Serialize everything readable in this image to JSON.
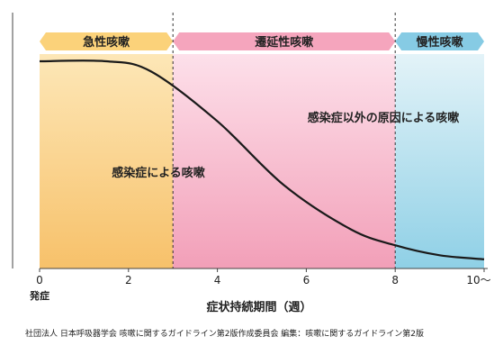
{
  "phases": [
    {
      "label": "急性咳嗽",
      "from_week": 0,
      "to_week": 3,
      "color_top": "#fde7b7",
      "color_bottom": "#f7c16a",
      "arrow_color": "#fbd27a"
    },
    {
      "label": "遷延性咳嗽",
      "from_week": 3,
      "to_week": 8,
      "color_top": "#fde0ea",
      "color_bottom": "#f29fb8",
      "arrow_color": "#f5a5bd"
    },
    {
      "label": "慢性咳嗽",
      "from_week": 8,
      "to_week": 10,
      "color_top": "#e3f3f8",
      "color_bottom": "#8fd0e6",
      "arrow_color": "#86cbe4"
    }
  ],
  "annotations": {
    "infection": "感染症による咳嗽",
    "non_infection": "感染症以外の原因による咳嗽"
  },
  "axis": {
    "ticks": [
      {
        "week": 0,
        "label": "0"
      },
      {
        "week": 2,
        "label": "2"
      },
      {
        "week": 4,
        "label": "4"
      },
      {
        "week": 6,
        "label": "6"
      },
      {
        "week": 8,
        "label": "8"
      },
      {
        "week": 10,
        "label": "10〜"
      }
    ],
    "origin_label": "発症",
    "xlabel": "症状持続期間（週）"
  },
  "curve": {
    "description_points": [
      [
        0,
        0.0
      ],
      [
        1.5,
        0.0
      ],
      [
        2.5,
        0.05
      ],
      [
        4,
        0.3
      ],
      [
        5.5,
        0.62
      ],
      [
        7,
        0.84
      ],
      [
        8,
        0.92
      ],
      [
        9,
        0.97
      ],
      [
        10,
        0.99
      ]
    ]
  },
  "source": "社団法人 日本呼吸器学会 咳嗽に関するガイドライン第2版作成委員会 編集：咳嗽に関するガイドライン第2版"
}
